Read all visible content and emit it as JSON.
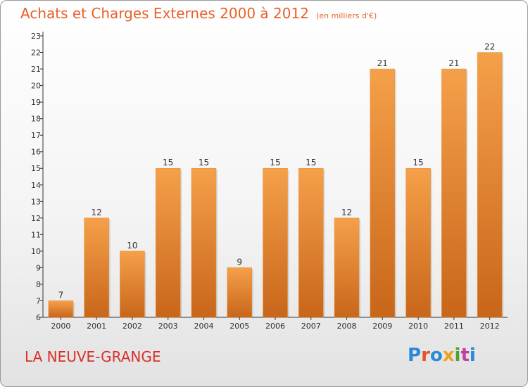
{
  "chart_data": {
    "type": "bar",
    "title": "Achats et Charges Externes 2000 à 2012",
    "unit_label": "(en milliers d'€)",
    "categories": [
      "2000",
      "2001",
      "2002",
      "2003",
      "2004",
      "2005",
      "2006",
      "2007",
      "2008",
      "2009",
      "2010",
      "2011",
      "2012"
    ],
    "values": [
      7,
      12,
      10,
      15,
      15,
      9,
      15,
      15,
      12,
      21,
      15,
      21,
      22
    ],
    "ylim": [
      6,
      23
    ],
    "yticks": [
      6,
      7,
      8,
      9,
      10,
      11,
      12,
      13,
      14,
      15,
      16,
      17,
      18,
      19,
      20,
      21,
      22,
      23
    ],
    "grid": false,
    "legend": "none",
    "bar_color": "#f5a04a",
    "bar_color_dark": "#c8661a"
  },
  "footer": {
    "location": "LA NEUVE-GRANGE",
    "brand": "Proxiti"
  }
}
